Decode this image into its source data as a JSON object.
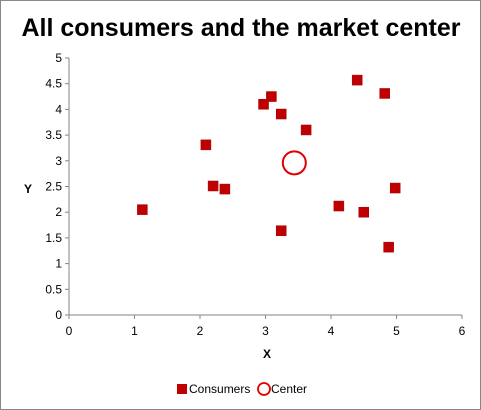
{
  "chart_data": {
    "type": "scatter",
    "title": "All consumers and the market center",
    "xlabel": "X",
    "ylabel": "Y",
    "xlim": [
      0,
      6
    ],
    "ylim": [
      0,
      5
    ],
    "xticks": [
      "0",
      "1",
      "2",
      "3",
      "4",
      "5",
      "6"
    ],
    "yticks": [
      "0",
      "0.5",
      "1",
      "1.5",
      "2",
      "2.5",
      "3",
      "3.5",
      "4",
      "4.5",
      "5"
    ],
    "grid": false,
    "legend_position": "bottom",
    "series": [
      {
        "name": "Consumers",
        "marker": "square",
        "color": "#C00000",
        "points": [
          {
            "x": 1.12,
            "y": 2.05
          },
          {
            "x": 2.09,
            "y": 3.31
          },
          {
            "x": 2.2,
            "y": 2.51
          },
          {
            "x": 2.38,
            "y": 2.45
          },
          {
            "x": 2.97,
            "y": 4.1
          },
          {
            "x": 3.09,
            "y": 4.25
          },
          {
            "x": 3.24,
            "y": 3.91
          },
          {
            "x": 3.24,
            "y": 1.64
          },
          {
            "x": 3.62,
            "y": 3.6
          },
          {
            "x": 4.12,
            "y": 2.12
          },
          {
            "x": 4.4,
            "y": 4.57
          },
          {
            "x": 4.5,
            "y": 2.0
          },
          {
            "x": 4.82,
            "y": 4.31
          },
          {
            "x": 4.88,
            "y": 1.32
          },
          {
            "x": 4.98,
            "y": 2.47
          }
        ]
      },
      {
        "name": "Center",
        "marker": "circle",
        "color": "#E00000",
        "points": [
          {
            "x": 3.44,
            "y": 2.96
          }
        ]
      }
    ]
  }
}
